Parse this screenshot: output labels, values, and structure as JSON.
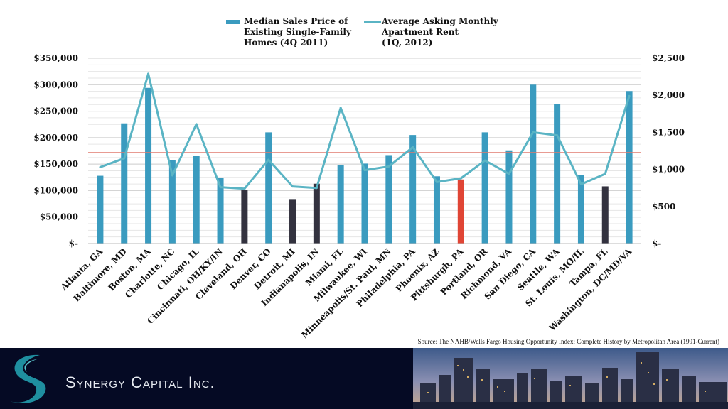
{
  "chart_data": {
    "type": "bar+line",
    "categories": [
      "Atlanta, GA",
      "Baltimore, MD",
      "Boston, MA",
      "Charlotte, NC",
      "Chicago, IL",
      "Cincinnati, OH/KY/IN",
      "Cleveland, OH",
      "Denver, CO",
      "Detroit, MI",
      "Indianapolis, IN",
      "Miami, FL",
      "Milwaukee, WI",
      "Minneapolis/St. Paul, MN",
      "Philadelphia, PA",
      "Phoenix, AZ",
      "Pittsburgh, PA",
      "Portland, OR",
      "Richmond, VA",
      "San Diego, CA",
      "Seattle, WA",
      "St. Louis, MO/IL",
      "Tampa, FL",
      "Washington, DC/MD/VA"
    ],
    "series": [
      {
        "name": "Median Sales Price of Existing Single-Family Homes (4Q 2011)",
        "kind": "bar",
        "axis": "left",
        "values": [
          128000,
          227000,
          294000,
          157000,
          166000,
          124000,
          101000,
          210000,
          84000,
          113000,
          148000,
          151000,
          167000,
          205000,
          127000,
          121000,
          210000,
          176000,
          300000,
          263000,
          130000,
          108000,
          288000
        ],
        "colors": [
          "#3a9bbf",
          "#3a9bbf",
          "#3a9bbf",
          "#3a9bbf",
          "#3a9bbf",
          "#3a9bbf",
          "#33323f",
          "#3a9bbf",
          "#33323f",
          "#33323f",
          "#3a9bbf",
          "#3a9bbf",
          "#3a9bbf",
          "#3a9bbf",
          "#3a9bbf",
          "#e04535",
          "#3a9bbf",
          "#3a9bbf",
          "#3a9bbf",
          "#3a9bbf",
          "#3a9bbf",
          "#33323f",
          "#3a9bbf"
        ]
      },
      {
        "name": "Average Asking Monthly Apartment Rent (1Q, 2012)",
        "kind": "line",
        "axis": "right",
        "values": [
          1030,
          1150,
          2290,
          920,
          1610,
          760,
          740,
          1130,
          770,
          750,
          1830,
          990,
          1040,
          1300,
          830,
          880,
          1120,
          940,
          1500,
          1460,
          800,
          940,
          1990
        ]
      }
    ],
    "reference_line": {
      "value": 172000,
      "axis": "left",
      "color": "#e07a6e"
    },
    "left_axis": {
      "ylim": [
        0,
        350000
      ],
      "ticks": [
        0,
        50000,
        100000,
        150000,
        200000,
        250000,
        300000,
        350000
      ],
      "tick_labels": [
        "$-",
        "$50,000",
        "$100,000",
        "$150,000",
        "$200,000",
        "$250,000",
        "$300,000",
        "$350,000"
      ]
    },
    "right_axis": {
      "ylim": [
        0,
        2500
      ],
      "ticks": [
        0,
        500,
        1000,
        1500,
        2000,
        2500
      ],
      "tick_labels": [
        "$-",
        "$500",
        "$1,000",
        "$1,500",
        "$2,000",
        "$2,500"
      ]
    },
    "legend": {
      "bar_lines": [
        "Median Sales Price of",
        "Existing Single-Family",
        "Homes (4Q 2011)"
      ],
      "line_lines": [
        "Average Asking Monthly",
        "Apartment Rent",
        "(1Q, 2012)"
      ],
      "placement": "top"
    },
    "source": "Source: The NAHB/Wells Fargo Housing Opportunity Index: Complete History by Metropolitan Area (1991-Current)",
    "grid": true,
    "colors": {
      "bar": "#3a9bbf",
      "bar_dark": "#33323f",
      "bar_highlight": "#e04535",
      "line": "#5ab4c4"
    }
  },
  "footer": {
    "company_name": "Synergy Capital Inc.",
    "logo_icon": "s-swoosh-logo-icon",
    "photo": "city-skyline-photo"
  }
}
